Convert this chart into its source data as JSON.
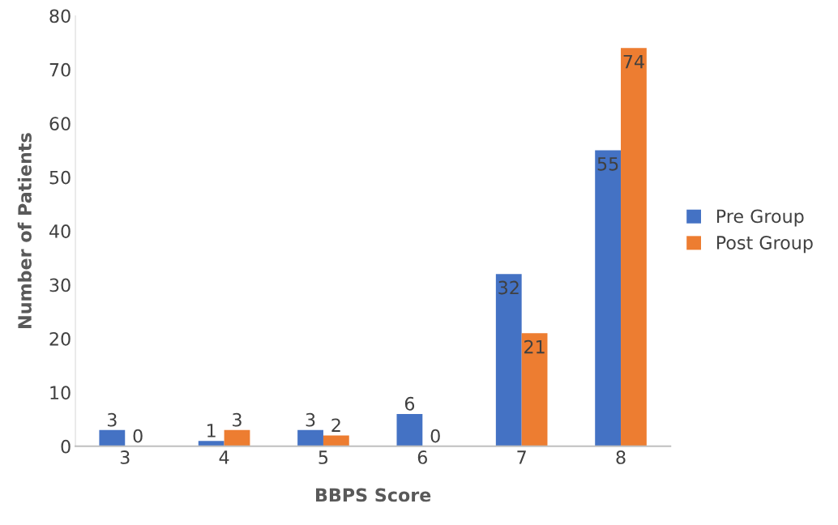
{
  "chart_data": {
    "type": "bar",
    "xlabel": "BBPS Score",
    "ylabel": "Number of Patients",
    "categories": [
      "3",
      "4",
      "5",
      "6",
      "7",
      "8"
    ],
    "series": [
      {
        "name": "Pre Group",
        "color": "#4472c4",
        "values": [
          3,
          1,
          3,
          6,
          32,
          55
        ]
      },
      {
        "name": "Post Group",
        "color": "#ed7d31",
        "values": [
          0,
          3,
          2,
          0,
          21,
          74
        ]
      }
    ],
    "ylim": [
      0,
      80
    ],
    "yticks": [
      0,
      10,
      20,
      30,
      40,
      50,
      60,
      70,
      80
    ],
    "grid": false,
    "legend": "right",
    "data_labels": true
  }
}
